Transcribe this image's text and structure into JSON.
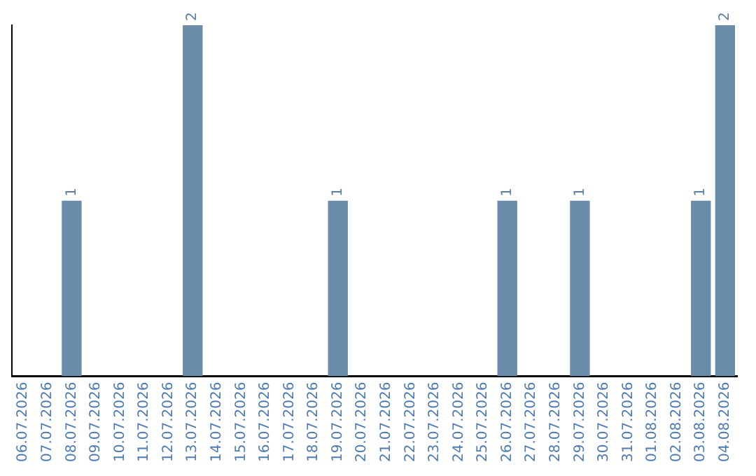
{
  "chart_data": {
    "type": "bar",
    "categories": [
      "06.07.2026",
      "07.07.2026",
      "08.07.2026",
      "09.07.2026",
      "10.07.2026",
      "11.07.2026",
      "12.07.2026",
      "13.07.2026",
      "14.07.2026",
      "15.07.2026",
      "16.07.2026",
      "17.07.2026",
      "18.07.2026",
      "19.07.2026",
      "20.07.2026",
      "21.07.2026",
      "22.07.2026",
      "23.07.2026",
      "24.07.2026",
      "25.07.2026",
      "26.07.2026",
      "27.07.2026",
      "28.07.2026",
      "29.07.2026",
      "30.07.2026",
      "31.07.2026",
      "01.08.2026",
      "02.08.2026",
      "03.08.2026",
      "04.08.2026"
    ],
    "values": [
      0,
      0,
      1,
      0,
      0,
      0,
      0,
      2,
      0,
      0,
      0,
      0,
      0,
      1,
      0,
      0,
      0,
      0,
      0,
      0,
      1,
      0,
      0,
      1,
      0,
      0,
      0,
      0,
      1,
      2
    ],
    "value_labels": [
      null,
      null,
      "1",
      null,
      null,
      null,
      null,
      "2",
      null,
      null,
      null,
      null,
      null,
      "1",
      null,
      null,
      null,
      null,
      null,
      null,
      "1",
      null,
      null,
      "1",
      null,
      null,
      null,
      null,
      "1",
      "2"
    ],
    "color": "#6a8caa",
    "grid": false,
    "legend": false,
    "tick_labels": "x"
  }
}
